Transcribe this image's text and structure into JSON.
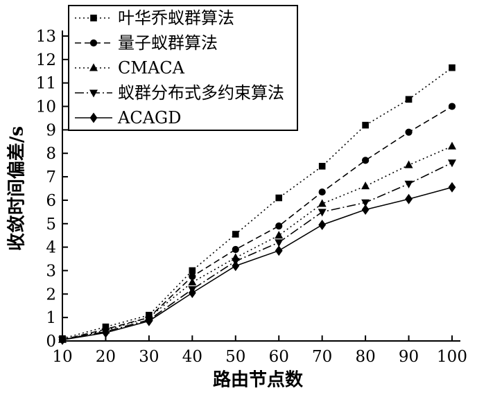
{
  "chart_data": {
    "type": "line",
    "title": "",
    "xlabel": "路由节点数",
    "ylabel": "收敛时间偏差/s",
    "x": [
      10,
      20,
      30,
      40,
      50,
      60,
      70,
      80,
      90,
      100
    ],
    "xticks": [
      10,
      20,
      30,
      40,
      50,
      60,
      70,
      80,
      90,
      100
    ],
    "yticks": [
      0,
      1,
      2,
      3,
      4,
      5,
      6,
      7,
      8,
      9,
      10,
      11,
      12,
      13
    ],
    "xlim": [
      10,
      100
    ],
    "ylim": [
      0,
      13
    ],
    "grid": false,
    "legend_position": "top-left",
    "background": "#ffffff",
    "line_color": "#000000",
    "series": [
      {
        "name": "叶华乔蚁群算法",
        "marker": "square",
        "line": "dotted",
        "values": [
          0.1,
          0.6,
          1.1,
          3.0,
          4.55,
          6.1,
          7.45,
          9.2,
          10.3,
          11.65
        ]
      },
      {
        "name": "量子蚁群算法",
        "marker": "circle",
        "line": "dashed",
        "values": [
          0.05,
          0.5,
          1.0,
          2.75,
          3.9,
          4.9,
          6.35,
          7.7,
          8.9,
          10.0
        ]
      },
      {
        "name": "CMACA",
        "marker": "triangle-up",
        "line": "dotted",
        "values": [
          0.05,
          0.45,
          1.0,
          2.5,
          3.55,
          4.5,
          5.85,
          6.6,
          7.5,
          8.3
        ]
      },
      {
        "name": "蚁群分布式多约束算法",
        "marker": "triangle-down",
        "line": "dash-dot",
        "values": [
          0.05,
          0.4,
          0.9,
          2.2,
          3.4,
          4.2,
          5.5,
          5.9,
          6.7,
          7.6
        ]
      },
      {
        "name": "ACAGD",
        "marker": "diamond",
        "line": "solid",
        "values": [
          0.05,
          0.35,
          0.85,
          2.05,
          3.2,
          3.85,
          4.95,
          5.6,
          6.05,
          6.55
        ]
      }
    ]
  }
}
